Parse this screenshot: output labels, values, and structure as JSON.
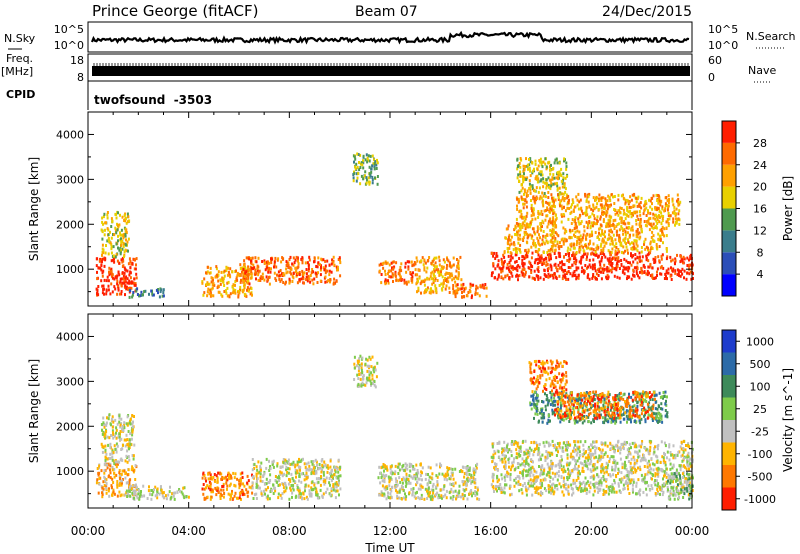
{
  "header": {
    "station": "Prince George (fitACF)",
    "beam": "Beam 07",
    "date": "24/Dec/2015"
  },
  "top_panels": {
    "nsky_label": "N.Sky",
    "nsearch_label": "N.Search",
    "nsky_ticks": [
      "10^5",
      "10^0"
    ],
    "freq_label": "Freq.",
    "freq_unit": "[MHz]",
    "freq_ticks": [
      "18",
      "8"
    ],
    "nave_label": "Nave",
    "nave_ticks": [
      "60",
      "0"
    ],
    "cpid_label": "CPID",
    "cpid_value": "twofsound  -3503"
  },
  "chart_data": [
    {
      "type": "heatmap",
      "name": "power",
      "ylabel": "Slant Range [km]",
      "xlabel": "",
      "yticks": [
        1000,
        2000,
        3000,
        4000
      ],
      "ylim": [
        180,
        4500
      ],
      "xlim": [
        0,
        24
      ],
      "colorbar": {
        "label": "Power [dB]",
        "ticks": [
          4,
          8,
          12,
          16,
          20,
          24,
          28
        ],
        "colors": [
          "#0000ff",
          "#2b4eb8",
          "#3a7d8c",
          "#4f9a4f",
          "#e8d000",
          "#ffa000",
          "#ff6a00",
          "#ff1e00"
        ]
      },
      "regions": [
        {
          "t0": 0.3,
          "t1": 1.9,
          "r0": 450,
          "r1": 1300,
          "level": 7
        },
        {
          "t0": 0.5,
          "t1": 1.6,
          "r0": 1300,
          "r1": 2300,
          "level": 4
        },
        {
          "t0": 1.6,
          "t1": 3.0,
          "r0": 400,
          "r1": 600,
          "level": 2
        },
        {
          "t0": 4.5,
          "t1": 6.5,
          "r0": 400,
          "r1": 1100,
          "level": 5
        },
        {
          "t0": 6.0,
          "t1": 10.0,
          "r0": 700,
          "r1": 1300,
          "level": 6
        },
        {
          "t0": 10.5,
          "t1": 11.5,
          "r0": 2900,
          "r1": 3600,
          "level": 3
        },
        {
          "t0": 11.5,
          "t1": 13.0,
          "r0": 700,
          "r1": 1200,
          "level": 6
        },
        {
          "t0": 13.0,
          "t1": 14.8,
          "r0": 500,
          "r1": 1300,
          "level": 5
        },
        {
          "t0": 14.5,
          "t1": 15.8,
          "r0": 400,
          "r1": 700,
          "level": 6
        },
        {
          "t0": 16.0,
          "t1": 24.0,
          "r0": 800,
          "r1": 1400,
          "level": 7
        },
        {
          "t0": 16.5,
          "t1": 23.0,
          "r0": 1400,
          "r1": 2000,
          "level": 5
        },
        {
          "t0": 17.0,
          "t1": 23.5,
          "r0": 2000,
          "r1": 2700,
          "level": 5
        },
        {
          "t0": 17.0,
          "t1": 19.0,
          "r0": 2700,
          "r1": 3500,
          "level": 4
        }
      ]
    },
    {
      "type": "heatmap",
      "name": "velocity",
      "ylabel": "Slant Range [km]",
      "xlabel": "Time UT",
      "xticks": [
        "00:00",
        "04:00",
        "08:00",
        "12:00",
        "16:00",
        "20:00",
        "00:00"
      ],
      "yticks": [
        1000,
        2000,
        3000,
        4000
      ],
      "ylim": [
        180,
        4500
      ],
      "xlim": [
        0,
        24
      ],
      "colorbar": {
        "label": "Velocity [m s^-1]",
        "ticks": [
          1000,
          500,
          100,
          25,
          -25,
          -100,
          -500,
          -1000
        ],
        "colors": [
          "#1e3ccc",
          "#2c6ba8",
          "#3d8a5a",
          "#7ecb4a",
          "#c0c0c0",
          "#ffb400",
          "#ff7800",
          "#ff1e00"
        ]
      },
      "regions": [
        {
          "t0": 0.3,
          "t1": 1.9,
          "r0": 450,
          "r1": 1200,
          "level": 5
        },
        {
          "t0": 0.5,
          "t1": 1.8,
          "r0": 1200,
          "r1": 2300,
          "level": 4
        },
        {
          "t0": 1.5,
          "t1": 4.0,
          "r0": 400,
          "r1": 700,
          "level": 4
        },
        {
          "t0": 4.5,
          "t1": 6.5,
          "r0": 400,
          "r1": 1000,
          "level": 6
        },
        {
          "t0": 6.5,
          "t1": 10.0,
          "r0": 400,
          "r1": 1300,
          "level": 4
        },
        {
          "t0": 10.5,
          "t1": 11.5,
          "r0": 2900,
          "r1": 3600,
          "level": 4
        },
        {
          "t0": 11.5,
          "t1": 15.5,
          "r0": 400,
          "r1": 1200,
          "level": 4
        },
        {
          "t0": 16.0,
          "t1": 24.0,
          "r0": 500,
          "r1": 1700,
          "level": 4
        },
        {
          "t0": 17.5,
          "t1": 23.0,
          "r0": 2100,
          "r1": 2800,
          "level": 2
        },
        {
          "t0": 18.5,
          "t1": 22.5,
          "r0": 2200,
          "r1": 2800,
          "level": 6
        },
        {
          "t0": 17.5,
          "t1": 19.0,
          "r0": 2800,
          "r1": 3500,
          "level": 6
        },
        {
          "t0": 23.0,
          "t1": 24.0,
          "r0": 400,
          "r1": 1000,
          "level": 3
        }
      ]
    }
  ]
}
